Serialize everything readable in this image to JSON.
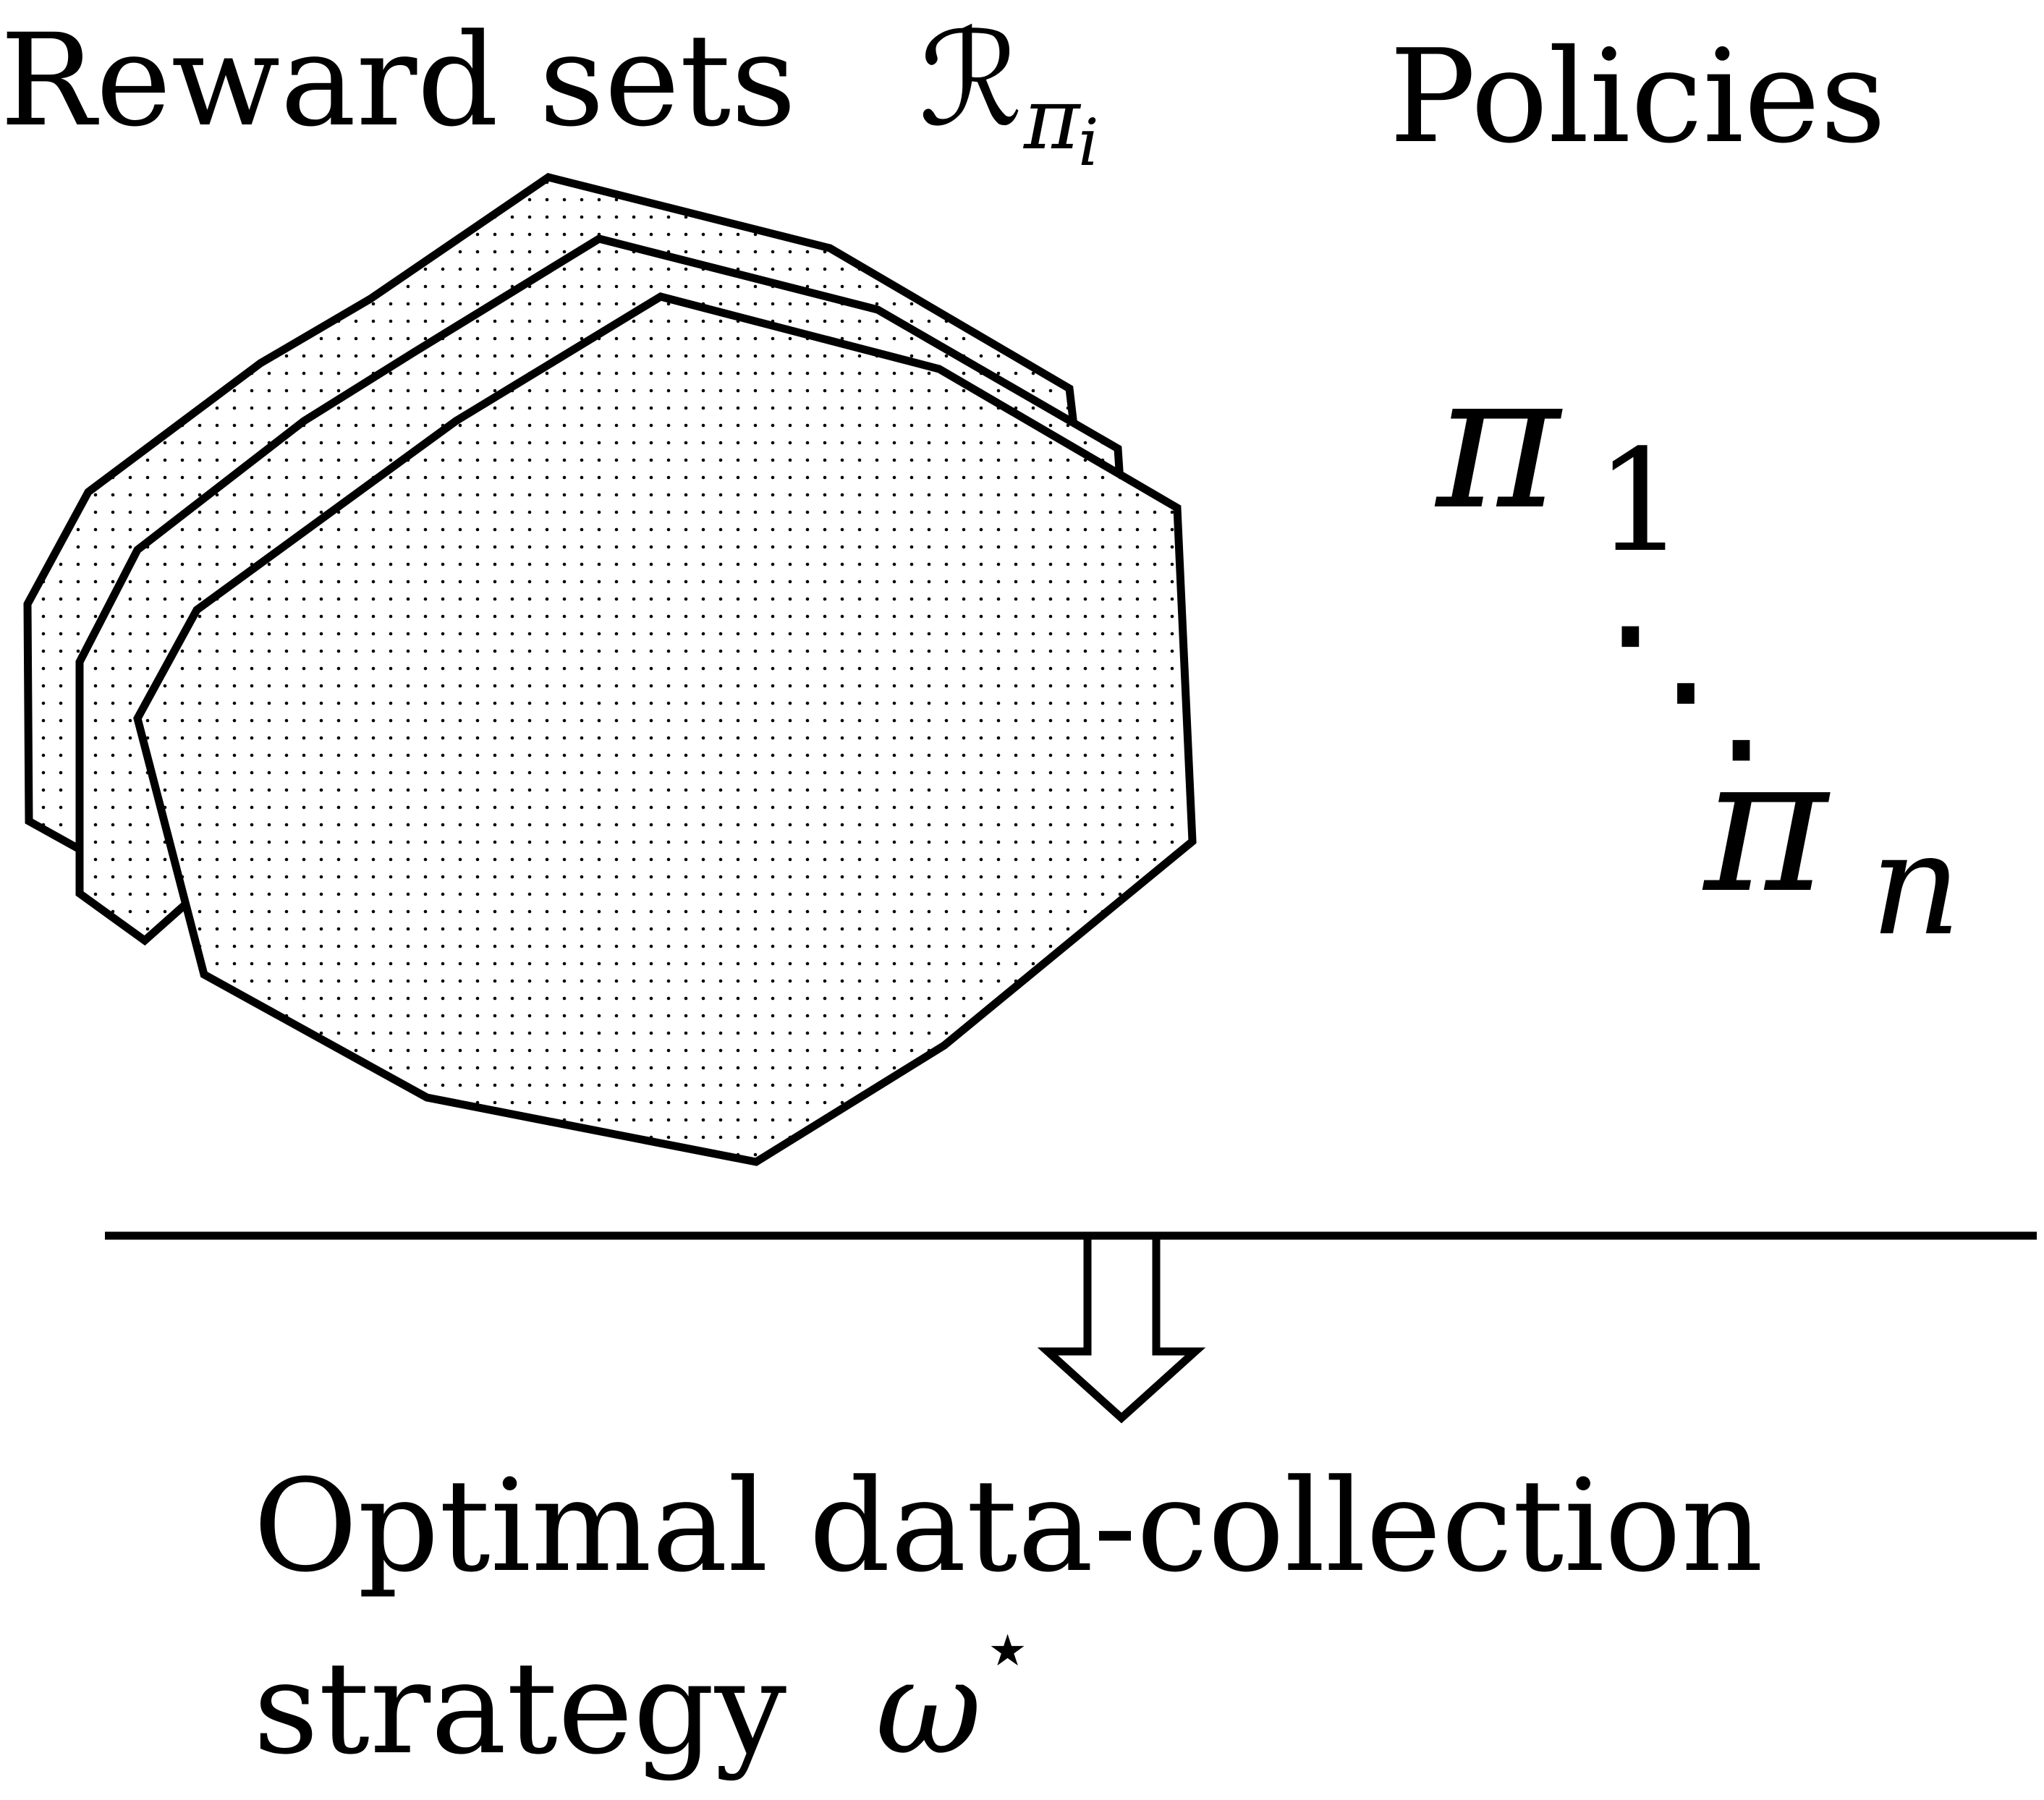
{
  "header": {
    "reward_sets_label": "Reward sets",
    "reward_sets_symbol": "ℛ",
    "reward_sets_sub_pi": "π",
    "reward_sets_sub_i": "i",
    "policies_label": "Policies"
  },
  "policies": {
    "first_symbol": "π",
    "first_subscript": "1",
    "ellipsis": "⋱",
    "last_symbol": "π",
    "last_subscript": "n"
  },
  "result": {
    "line1": "Optimal data-collection",
    "line2": "strategy",
    "symbol": "ω",
    "superscript": "⋆"
  },
  "colors": {
    "ink": "#000000",
    "background": "#ffffff"
  }
}
